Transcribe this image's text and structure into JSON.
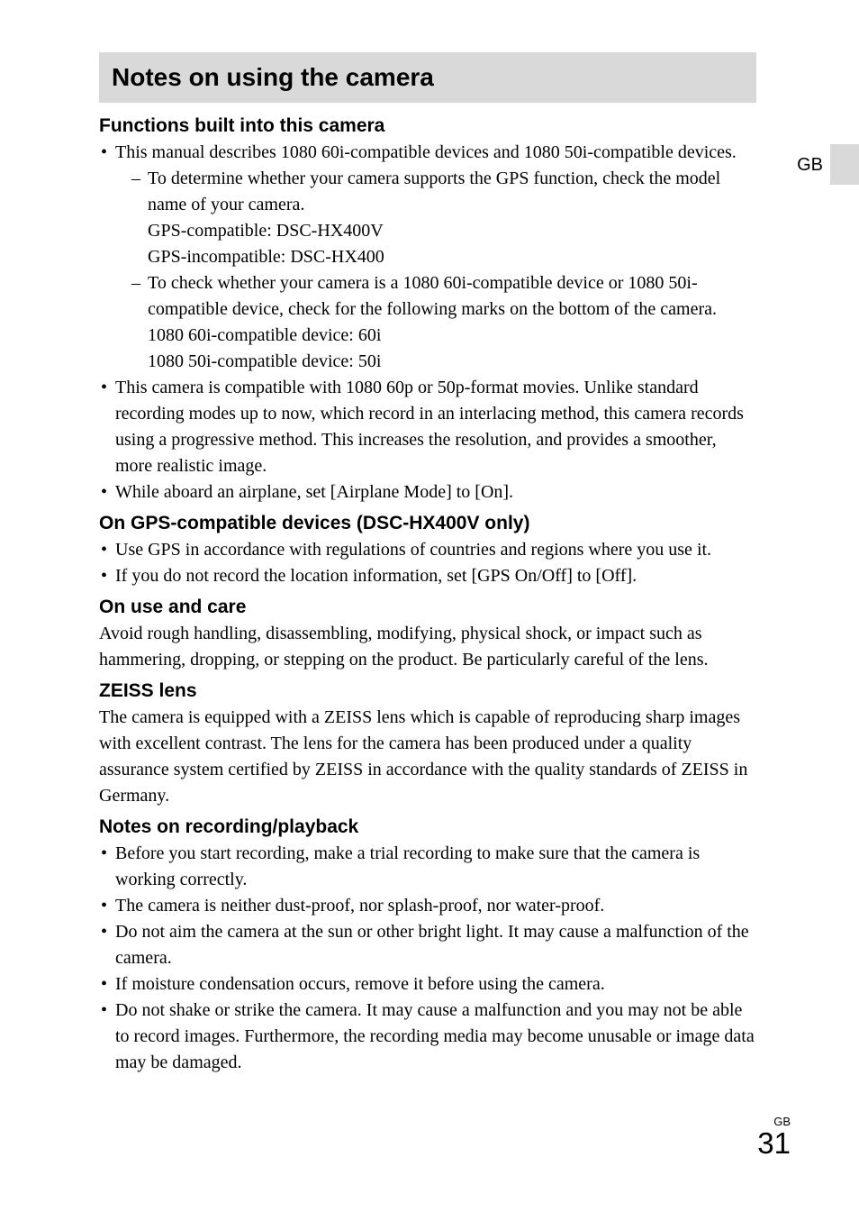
{
  "page": {
    "title": "Notes on using the camera",
    "side_label": "GB",
    "footer_lang": "GB",
    "footer_page": "31"
  },
  "sections": {
    "functions": {
      "heading": "Functions built into this camera",
      "b1": "This manual describes 1080 60i-compatible devices and 1080 50i-compatible devices.",
      "d1": "To determine whether your camera supports the GPS function, check the model name of your camera.",
      "d1a": "GPS-compatible: DSC-HX400V",
      "d1b": "GPS-incompatible: DSC-HX400",
      "d2": "To check whether your camera is a 1080 60i-compatible device or 1080 50i-compatible device, check for the following marks on the bottom of the camera.",
      "d2a": "1080 60i-compatible device: 60i",
      "d2b": "1080 50i-compatible device: 50i",
      "b2": "This camera is compatible with 1080 60p or 50p-format movies. Unlike standard recording modes up to now, which record in an interlacing method, this camera records using a progressive method. This increases the resolution, and provides a smoother, more realistic image.",
      "b3": "While aboard an airplane, set [Airplane Mode] to [On]."
    },
    "gps": {
      "heading": "On GPS-compatible devices (DSC-HX400V only)",
      "b1": "Use GPS in accordance with regulations of countries and regions where you use it.",
      "b2": "If you do not record the location information, set [GPS On/Off] to [Off]."
    },
    "care": {
      "heading": "On use and care",
      "p": "Avoid rough handling, disassembling, modifying, physical shock, or impact such as hammering, dropping, or stepping on the product. Be particularly careful of the lens."
    },
    "zeiss": {
      "heading": "ZEISS lens",
      "p": "The camera is equipped with a ZEISS lens which is capable of reproducing sharp images with excellent contrast. The lens for the camera has been produced under a quality assurance system certified by ZEISS in accordance with the quality standards of ZEISS in Germany."
    },
    "recording": {
      "heading": "Notes on recording/playback",
      "b1": "Before you start recording, make a trial recording to make sure that the camera is working correctly.",
      "b2": "The camera is neither dust-proof, nor splash-proof, nor water-proof.",
      "b3": "Do not aim the camera at the sun or other bright light. It may cause a malfunction of the camera.",
      "b4": "If moisture condensation occurs, remove it before using the camera.",
      "b5": "Do not shake or strike the camera. It may cause a malfunction and you may not be able to record images. Furthermore, the recording media may become unusable or image data may be damaged."
    }
  },
  "style": {
    "title_bg": "#d9d9d9",
    "page_bg": "#ffffff",
    "text_color": "#000000",
    "heading_font": "Arial",
    "body_font": "Times New Roman",
    "title_fontsize": 28,
    "heading_fontsize": 21,
    "body_fontsize": 20,
    "pagenum_fontsize": 33
  }
}
